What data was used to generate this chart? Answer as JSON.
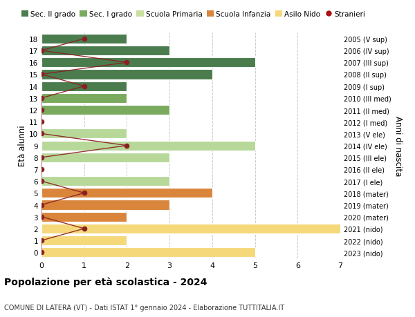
{
  "ages": [
    18,
    17,
    16,
    15,
    14,
    13,
    12,
    11,
    10,
    9,
    8,
    7,
    6,
    5,
    4,
    3,
    2,
    1,
    0
  ],
  "right_labels": [
    "2005 (V sup)",
    "2006 (IV sup)",
    "2007 (III sup)",
    "2008 (II sup)",
    "2009 (I sup)",
    "2010 (III med)",
    "2011 (II med)",
    "2012 (I med)",
    "2013 (V ele)",
    "2014 (IV ele)",
    "2015 (III ele)",
    "2016 (II ele)",
    "2017 (I ele)",
    "2018 (mater)",
    "2019 (mater)",
    "2020 (mater)",
    "2021 (nido)",
    "2022 (nido)",
    "2023 (nido)"
  ],
  "bar_values": [
    2,
    3,
    5,
    4,
    2,
    2,
    3,
    0,
    2,
    5,
    3,
    0,
    3,
    4,
    3,
    2,
    7,
    2,
    5
  ],
  "bar_colors": [
    "#4a7c4e",
    "#4a7c4e",
    "#4a7c4e",
    "#4a7c4e",
    "#4a7c4e",
    "#7aaa5e",
    "#7aaa5e",
    "#7aaa5e",
    "#b8d89a",
    "#b8d89a",
    "#b8d89a",
    "#b8d89a",
    "#b8d89a",
    "#d9853c",
    "#d9853c",
    "#d9853c",
    "#f5d87a",
    "#f5d87a",
    "#f5d87a"
  ],
  "stranieri_x": [
    1,
    0,
    2,
    0,
    1,
    0,
    0,
    0,
    0,
    2,
    0,
    0,
    0,
    1,
    0,
    0,
    1,
    0,
    0
  ],
  "legend_labels": [
    "Sec. II grado",
    "Sec. I grado",
    "Scuola Primaria",
    "Scuola Infanzia",
    "Asilo Nido",
    "Stranieri"
  ],
  "legend_colors": [
    "#4a7c4e",
    "#7aaa5e",
    "#c8dfa0",
    "#d9853c",
    "#f5d87a",
    "#aa1111"
  ],
  "ylabel": "Età alunni",
  "right_ylabel": "Anni di nascita",
  "title": "Popolazione per età scolastica - 2024",
  "subtitle": "COMUNE DI LATERA (VT) - Dati ISTAT 1° gennaio 2024 - Elaborazione TUTTITALIA.IT",
  "xlim": [
    0,
    7
  ],
  "background_color": "#ffffff",
  "grid_color": "#cccccc",
  "line_color": "#8b2020",
  "bar_height": 0.82
}
